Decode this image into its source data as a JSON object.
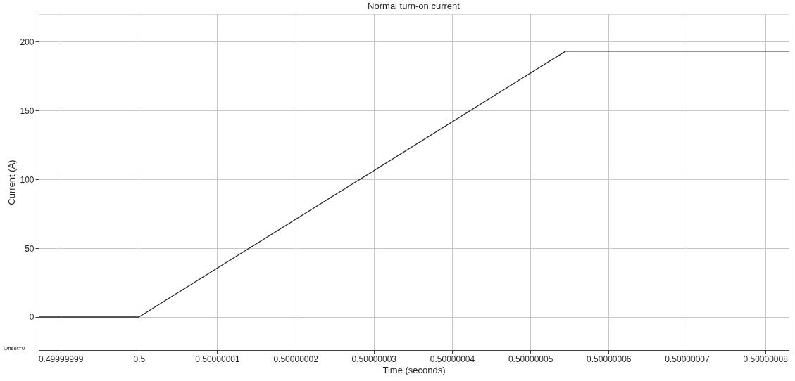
{
  "chart_data": {
    "type": "line",
    "title": "Normal turn-on current",
    "xlabel": "Time (seconds)",
    "ylabel": "Current (A)",
    "x": [
      0.4999999872,
      0.5,
      0.5000000545,
      0.500000083
    ],
    "series": [
      {
        "color": "#262626",
        "values": [
          0,
          0,
          193,
          193
        ]
      }
    ],
    "xlim": [
      0.4999999872,
      0.500000083
    ],
    "xticks": [
      0.49999999,
      0.5,
      0.50000001,
      0.50000002,
      0.50000003,
      0.50000004,
      0.50000005,
      0.50000006,
      0.50000007,
      0.50000008
    ],
    "ylim": [
      -24,
      220
    ],
    "yticks": [
      0,
      50,
      100,
      150,
      200
    ],
    "grid": true,
    "marker": "none",
    "line_style": "solid",
    "annotations": [
      "Offset=0"
    ]
  }
}
